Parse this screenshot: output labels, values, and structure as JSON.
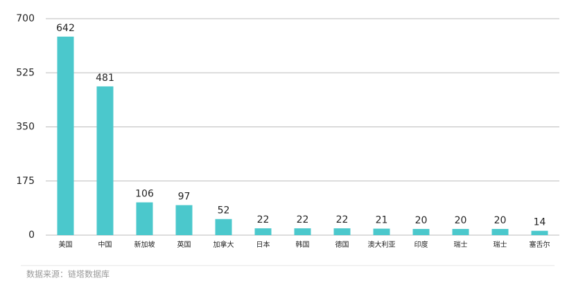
{
  "chart_data": {
    "type": "bar",
    "categories": [
      "美国",
      "中国",
      "新加坡",
      "英国",
      "加拿大",
      "日本",
      "韩国",
      "德国",
      "澳大利亚",
      "印度",
      "瑞士",
      "瑞士",
      "塞舌尔"
    ],
    "values": [
      642,
      481,
      106,
      97,
      52,
      22,
      22,
      22,
      21,
      20,
      20,
      20,
      14
    ],
    "color": "#4bc8cc",
    "ylim": [
      0,
      700
    ],
    "yticks": [
      0,
      175,
      350,
      525,
      700
    ],
    "grid": true,
    "source": "数据来源：链塔数据库"
  }
}
